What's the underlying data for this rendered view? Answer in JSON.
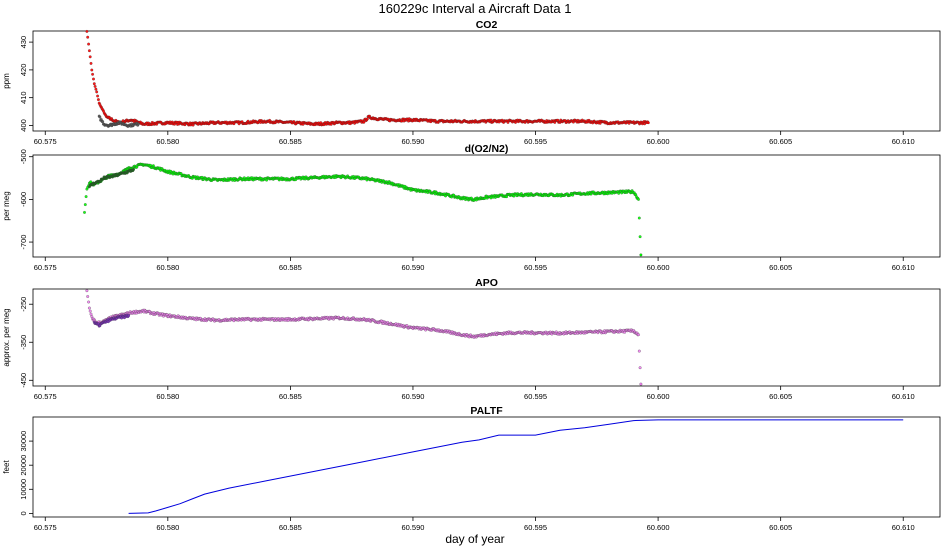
{
  "figure": {
    "title": "160229c   Interval a Aircraft Data 1",
    "xlabel": "day of year"
  },
  "chart_data": [
    {
      "type": "scatter",
      "title": "CO2",
      "ylabel": "ppm",
      "xlim": [
        60.5745,
        60.6115
      ],
      "ylim": [
        398,
        434
      ],
      "x_ticks": [
        "60.575",
        "60.580",
        "60.585",
        "60.590",
        "60.595",
        "60.600",
        "60.605",
        "60.610"
      ],
      "y_ticks": [
        "400",
        "410",
        "420",
        "430"
      ],
      "series": [
        {
          "color": "#ff0000",
          "x": [
            60.5767,
            60.5768,
            60.5769,
            60.577,
            60.5771,
            60.5772,
            60.5775,
            60.578,
            60.5785,
            60.579,
            60.58,
            60.581,
            60.582,
            60.583,
            60.584,
            60.585,
            60.586,
            60.587,
            60.5875,
            60.588,
            60.5882,
            60.5885,
            60.589,
            60.59,
            60.591,
            60.592,
            60.593,
            60.594,
            60.595,
            60.596,
            60.597,
            60.598,
            60.599,
            60.5996
          ],
          "y": [
            434,
            427,
            420,
            415,
            412,
            408,
            403,
            401,
            402,
            400.5,
            401,
            400.5,
            401,
            401,
            401.5,
            401,
            400.5,
            401,
            401,
            401.5,
            403,
            402.5,
            402,
            402,
            401.5,
            401.5,
            401.5,
            401.5,
            401.5,
            401.5,
            401.5,
            401,
            401,
            401
          ]
        },
        {
          "color": "#555555",
          "x": [
            60.5772,
            60.5774,
            60.5776,
            60.5778,
            60.578,
            60.5784,
            60.5788
          ],
          "y": [
            403,
            400.5,
            400,
            400.5,
            401,
            400,
            400.5
          ]
        }
      ]
    },
    {
      "type": "scatter",
      "title": "d(O2/N2)",
      "ylabel": "per meg",
      "xlim": [
        60.5745,
        60.6115
      ],
      "ylim": [
        -735,
        -496
      ],
      "x_ticks": [
        "60.575",
        "60.580",
        "60.585",
        "60.590",
        "60.595",
        "60.600",
        "60.605",
        "60.610"
      ],
      "y_ticks": [
        "-500",
        "-600",
        "-700"
      ],
      "series": [
        {
          "color": "#00ff00",
          "x": [
            60.5766,
            60.5767,
            60.5768,
            60.577,
            60.5773,
            60.5776,
            60.578,
            60.5785,
            60.579,
            60.5795,
            60.58,
            60.581,
            60.582,
            60.583,
            60.584,
            60.585,
            60.586,
            60.587,
            60.588,
            60.589,
            60.59,
            60.591,
            60.592,
            60.5925,
            60.593,
            60.594,
            60.595,
            60.596,
            60.597,
            60.598,
            60.599,
            60.5992,
            60.5993
          ],
          "y": [
            -630,
            -575,
            -560,
            -565,
            -555,
            -545,
            -540,
            -525,
            -518,
            -525,
            -535,
            -548,
            -555,
            -552,
            -552,
            -552,
            -549,
            -546,
            -551,
            -560,
            -578,
            -585,
            -597,
            -600,
            -595,
            -590,
            -588,
            -590,
            -586,
            -584,
            -582,
            -600,
            -730
          ]
        },
        {
          "color": "#1e6b1e",
          "x": [
            60.5768,
            60.577,
            60.5772,
            60.5774,
            60.5776,
            60.5778,
            60.578,
            60.5782,
            60.5784,
            60.5786
          ],
          "y": [
            -570,
            -562,
            -558,
            -550,
            -548,
            -545,
            -542,
            -538,
            -535,
            -530
          ]
        }
      ]
    },
    {
      "type": "scatter",
      "title": "APO",
      "ylabel": "approx. per meg",
      "xlim": [
        60.5745,
        60.6115
      ],
      "ylim": [
        -465,
        -210
      ],
      "x_ticks": [
        "60.575",
        "60.580",
        "60.585",
        "60.590",
        "60.595",
        "60.600",
        "60.605",
        "60.610"
      ],
      "y_ticks": [
        "-250",
        "-350",
        "-450"
      ],
      "series": [
        {
          "color": "#ee82ee",
          "x": [
            60.5767,
            60.5768,
            60.5769,
            60.5771,
            60.5774,
            60.5777,
            60.578,
            60.5785,
            60.579,
            60.5795,
            60.58,
            60.581,
            60.582,
            60.583,
            60.584,
            60.585,
            60.586,
            60.587,
            60.588,
            60.589,
            60.59,
            60.591,
            60.592,
            60.5925,
            60.593,
            60.594,
            60.595,
            60.596,
            60.597,
            60.598,
            60.599,
            60.5992,
            60.5993
          ],
          "y": [
            -215,
            -260,
            -285,
            -300,
            -295,
            -285,
            -280,
            -272,
            -268,
            -275,
            -280,
            -288,
            -292,
            -290,
            -290,
            -290,
            -288,
            -286,
            -290,
            -300,
            -312,
            -318,
            -330,
            -335,
            -330,
            -325,
            -325,
            -326,
            -324,
            -322,
            -320,
            -330,
            -460
          ]
        },
        {
          "color": "#7b2fbe",
          "x": [
            60.577,
            60.5772,
            60.5774,
            60.5776,
            60.5778,
            60.578,
            60.5782,
            60.5784
          ],
          "y": [
            -300,
            -305,
            -298,
            -292,
            -288,
            -285,
            -283,
            -280
          ]
        }
      ]
    },
    {
      "type": "line",
      "title": "PALTF",
      "ylabel": "feet",
      "xlim": [
        60.5745,
        60.6115
      ],
      "ylim": [
        -1500,
        40000
      ],
      "x_ticks": [
        "60.575",
        "60.580",
        "60.585",
        "60.590",
        "60.595",
        "60.600",
        "60.605",
        "60.610"
      ],
      "y_ticks": [
        "0",
        "10000",
        "20000",
        "30000"
      ],
      "series": [
        {
          "color": "#0000dd",
          "x": [
            60.5784,
            60.5792,
            60.5795,
            60.58,
            60.5805,
            60.581,
            60.5815,
            60.5825,
            60.584,
            60.586,
            60.588,
            60.59,
            60.592,
            60.5927,
            60.5935,
            60.595,
            60.596,
            60.597,
            60.598,
            60.599,
            60.6,
            60.605,
            60.61
          ],
          "y": [
            0,
            200,
            1000,
            2500,
            4000,
            6000,
            8000,
            10500,
            13500,
            17500,
            21500,
            25500,
            29500,
            30500,
            32500,
            32500,
            34500,
            35500,
            37000,
            38500,
            38800,
            38800,
            38800
          ]
        }
      ]
    }
  ]
}
